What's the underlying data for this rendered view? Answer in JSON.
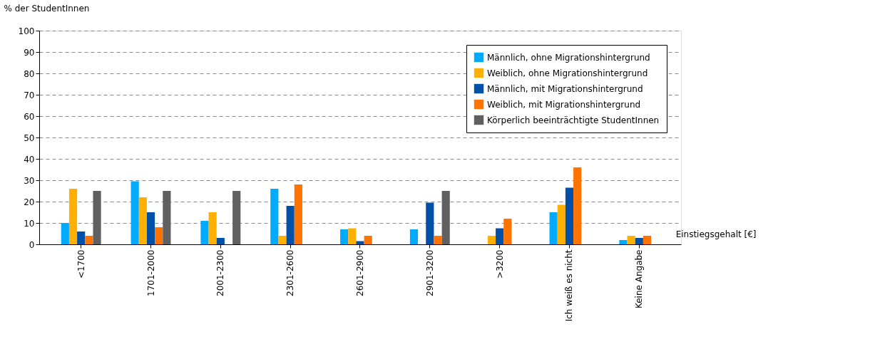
{
  "chart_data": {
    "type": "bar",
    "xlabel": "Einstiegsgehalt [€]",
    "ylabel": "% der StudentInnen",
    "categories": [
      "<1700",
      "1701-2000",
      "2001-2300",
      "2301-2600",
      "2601-2900",
      "2901-3200",
      ">3200",
      "Ich weiß es nicht",
      "Keine Angabe"
    ],
    "series": [
      {
        "name": "Männlich, ohne Migrationshintergrund",
        "color": "#00aaff",
        "values": [
          10,
          29.5,
          11,
          26,
          7,
          7,
          0,
          15,
          2
        ]
      },
      {
        "name": "Weiblich, ohne Migrationshintergrund",
        "color": "#ffb000",
        "values": [
          26,
          22,
          15,
          4,
          7.5,
          0,
          4,
          18.5,
          4
        ]
      },
      {
        "name": "Männlich, mit Migrationshintergrund",
        "color": "#0050a8",
        "values": [
          6,
          15,
          3,
          18,
          1.5,
          19.5,
          7.5,
          26.5,
          3
        ]
      },
      {
        "name": "Weiblich, mit Migrationshintergrund",
        "color": "#ff7300",
        "values": [
          4,
          8,
          0,
          28,
          4,
          4,
          12,
          36,
          4
        ]
      },
      {
        "name": "Körperlich beeinträchtigte StudentInnen",
        "color": "#606060",
        "values": [
          25,
          25,
          25,
          0,
          0,
          25,
          0,
          0,
          0
        ]
      }
    ],
    "ylim": [
      0,
      100
    ],
    "yticks": [
      0,
      10,
      20,
      30,
      40,
      50,
      60,
      70,
      80,
      90,
      100
    ],
    "grid": "y",
    "legend": "top right"
  }
}
